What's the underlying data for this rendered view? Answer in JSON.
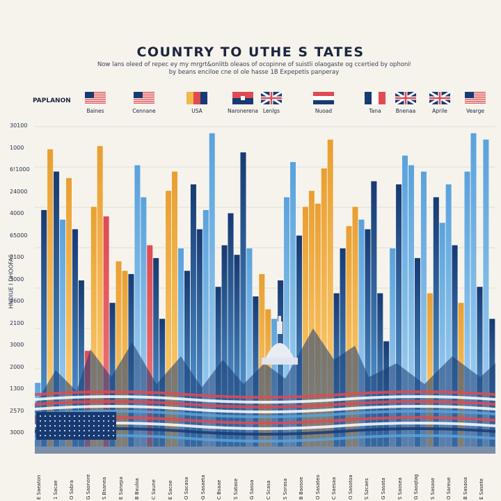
{
  "chart_data": {
    "type": "bar",
    "title": "COUNTRY TO UTHE S TATES",
    "subtitle_lines": [
      "Now lans oleed of repec ey my mrgrt&onlitb oleaos of ocopinne of suistli olaogaste og ccertied by ophonit.",
      "by beans enciloe cne ol ole hasse 1B Expepetis panperay"
    ],
    "legend_title": "PAPLANON",
    "ylabel": "HNDIUE I DHOOFAS",
    "y_tick_labels": [
      "30100",
      "1000",
      "6!1000",
      "24000",
      "4000",
      "65000",
      "2100",
      "3000",
      "2600",
      "2100",
      "3000",
      "2000",
      "1300",
      "2570",
      "3000"
    ],
    "legend": [
      {
        "name": "Baines",
        "flag": "us"
      },
      {
        "name": "Cennane",
        "flag": "us"
      },
      {
        "name": "USA",
        "flag": "tri"
      },
      {
        "name": "Naronerena",
        "flag": "red"
      },
      {
        "name": "Lenlgs",
        "flag": "uk"
      },
      {
        "name": "Nuoad",
        "flag": "stripe"
      },
      {
        "name": "Tana",
        "flag": "tri2"
      },
      {
        "name": "Bnenaa",
        "flag": "uk"
      },
      {
        "name": "Aprile",
        "flag": "uk"
      },
      {
        "name": "Vearge",
        "flag": "us"
      }
    ],
    "bars": [
      {
        "value": 20,
        "color": "lightblue"
      },
      {
        "value": 74,
        "color": "blue"
      },
      {
        "value": 93,
        "color": "yellow"
      },
      {
        "value": 86,
        "color": "blue"
      },
      {
        "value": 71,
        "color": "lightblue"
      },
      {
        "value": 84,
        "color": "yellow"
      },
      {
        "value": 68,
        "color": "blue"
      },
      {
        "value": 52,
        "color": "blue"
      },
      {
        "value": 30,
        "color": "red"
      },
      {
        "value": 75,
        "color": "yellow"
      },
      {
        "value": 94,
        "color": "yellow"
      },
      {
        "value": 72,
        "color": "red"
      },
      {
        "value": 45,
        "color": "blue"
      },
      {
        "value": 58,
        "color": "yellow"
      },
      {
        "value": 55,
        "color": "yellow"
      },
      {
        "value": 54,
        "color": "blue"
      },
      {
        "value": 88,
        "color": "lightblue"
      },
      {
        "value": 78,
        "color": "lightblue"
      },
      {
        "value": 63,
        "color": "red"
      },
      {
        "value": 59,
        "color": "blue"
      },
      {
        "value": 40,
        "color": "blue"
      },
      {
        "value": 80,
        "color": "yellow"
      },
      {
        "value": 86,
        "color": "yellow"
      },
      {
        "value": 62,
        "color": "lightblue"
      },
      {
        "value": 55,
        "color": "blue"
      },
      {
        "value": 82,
        "color": "blue"
      },
      {
        "value": 68,
        "color": "blue"
      },
      {
        "value": 74,
        "color": "lightblue"
      },
      {
        "value": 98,
        "color": "lightblue"
      },
      {
        "value": 50,
        "color": "blue"
      },
      {
        "value": 63,
        "color": "blue"
      },
      {
        "value": 73,
        "color": "blue"
      },
      {
        "value": 60,
        "color": "blue"
      },
      {
        "value": 92,
        "color": "blue"
      },
      {
        "value": 62,
        "color": "lightblue"
      },
      {
        "value": 47,
        "color": "blue"
      },
      {
        "value": 54,
        "color": "yellow"
      },
      {
        "value": 43,
        "color": "yellow"
      },
      {
        "value": 40,
        "color": "lightblue"
      },
      {
        "value": 52,
        "color": "blue"
      },
      {
        "value": 78,
        "color": "lightblue"
      },
      {
        "value": 89,
        "color": "lightblue"
      },
      {
        "value": 66,
        "color": "blue"
      },
      {
        "value": 75,
        "color": "yellow"
      },
      {
        "value": 80,
        "color": "yellow"
      },
      {
        "value": 76,
        "color": "yellow"
      },
      {
        "value": 87,
        "color": "yellow"
      },
      {
        "value": 96,
        "color": "yellow"
      },
      {
        "value": 48,
        "color": "blue"
      },
      {
        "value": 62,
        "color": "blue"
      },
      {
        "value": 69,
        "color": "yellow"
      },
      {
        "value": 75,
        "color": "yellow"
      },
      {
        "value": 71,
        "color": "lightblue"
      },
      {
        "value": 68,
        "color": "blue"
      },
      {
        "value": 83,
        "color": "blue"
      },
      {
        "value": 48,
        "color": "blue"
      },
      {
        "value": 33,
        "color": "blue"
      },
      {
        "value": 62,
        "color": "lightblue"
      },
      {
        "value": 82,
        "color": "blue"
      },
      {
        "value": 91,
        "color": "lightblue"
      },
      {
        "value": 88,
        "color": "lightblue"
      },
      {
        "value": 59,
        "color": "blue"
      },
      {
        "value": 86,
        "color": "lightblue"
      },
      {
        "value": 48,
        "color": "yellow"
      },
      {
        "value": 78,
        "color": "blue"
      },
      {
        "value": 70,
        "color": "lightblue"
      },
      {
        "value": 82,
        "color": "lightblue"
      },
      {
        "value": 63,
        "color": "blue"
      },
      {
        "value": 45,
        "color": "yellow"
      },
      {
        "value": 86,
        "color": "lightblue"
      },
      {
        "value": 98,
        "color": "lightblue"
      },
      {
        "value": 50,
        "color": "blue"
      },
      {
        "value": 96,
        "color": "lightblue"
      },
      {
        "value": 40,
        "color": "blue"
      }
    ],
    "x_labels": [
      "E Saeaton",
      "1 Sacae",
      "O Sabra",
      "G Saonore",
      "S Bsanea",
      "E Sanepa",
      "B Bxuloa",
      "C Saune",
      "E Sacoe",
      "O Sacasa",
      "G Sasaeta",
      "C Bsaae",
      "S Satase",
      "G Sasoa",
      "C Scasa",
      "S Sorasa",
      "B Baosoe",
      "O Sasateo",
      "C Saesaa",
      "O Sasotoa",
      "S Szcaes",
      "G Sasata",
      "S Saosea",
      "G Saoqtag",
      "S Sasase",
      "O Sareue",
      "B Sasaoa",
      "E Sasete"
    ],
    "ylim": [
      0,
      100
    ]
  },
  "colors": {
    "background": "#f6f3ec",
    "blue": "#1f4f94",
    "darkblue": "#173a72",
    "lightblue": "#5aa2db",
    "yellow": "#f1b84a",
    "red": "#e04a53"
  }
}
